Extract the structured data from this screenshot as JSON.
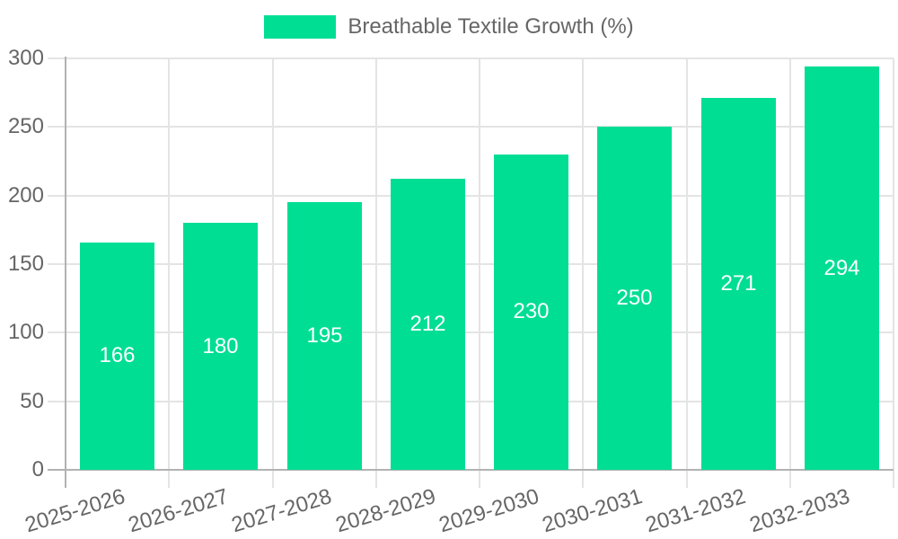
{
  "chart_data": {
    "type": "bar",
    "title": "",
    "legend": {
      "label": "Breathable Textile Growth (%)",
      "position": "top"
    },
    "categories": [
      "2025-2026",
      "2026-2027",
      "2027-2028",
      "2028-2029",
      "2029-2030",
      "2030-2031",
      "2031-2032",
      "2032-2033"
    ],
    "values": [
      166,
      180,
      195,
      212,
      230,
      250,
      271,
      294
    ],
    "xlabel": "",
    "ylabel": "",
    "ylim": [
      0,
      300
    ],
    "ytick_step": 50,
    "ytick_labels": [
      "0",
      "50",
      "100",
      "150",
      "200",
      "250",
      "300"
    ],
    "grid": true,
    "data_labels": "inside-center",
    "colors": {
      "bar": "#00DE94",
      "grid": "#e4e4e4",
      "axis": "#b2b2b2",
      "tick_text": "#666666",
      "legend_text": "#666666",
      "data_label_text": "#ffffff",
      "background": "#ffffff"
    }
  }
}
